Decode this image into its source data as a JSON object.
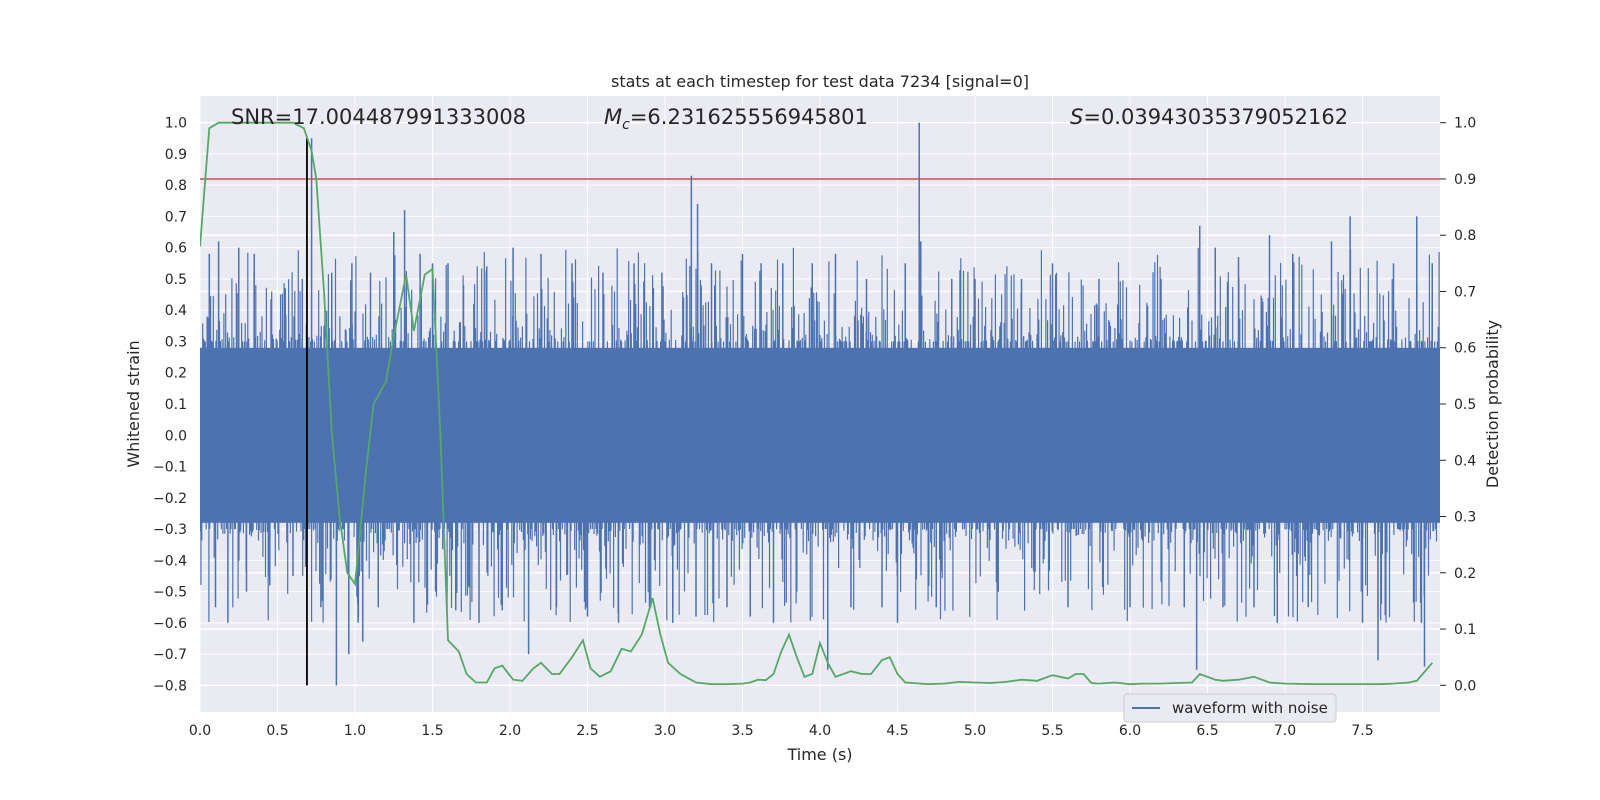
{
  "chart_data": {
    "type": "line",
    "title": "stats at each timestep for test data 7234 [signal=0]",
    "xlabel": "Time (s)",
    "ylabel": "Whitened strain",
    "y2label": "Detection probability",
    "xlim": [
      0.0,
      8.0
    ],
    "ylim": [
      -0.885,
      1.085
    ],
    "y2lim": [
      -0.0475,
      1.0475
    ],
    "x_ticks": [
      "0.0",
      "0.5",
      "1.0",
      "1.5",
      "2.0",
      "2.5",
      "3.0",
      "3.5",
      "4.0",
      "4.5",
      "5.0",
      "5.5",
      "6.0",
      "6.5",
      "7.0",
      "7.5"
    ],
    "y_ticks": [
      "−0.8",
      "−0.7",
      "−0.6",
      "−0.5",
      "−0.4",
      "−0.3",
      "−0.2",
      "−0.1",
      "0.0",
      "0.1",
      "0.2",
      "0.3",
      "0.4",
      "0.5",
      "0.6",
      "0.7",
      "0.8",
      "0.9",
      "1.0"
    ],
    "y2_ticks": [
      "0.0",
      "0.1",
      "0.2",
      "0.3",
      "0.4",
      "0.5",
      "0.6",
      "0.7",
      "0.8",
      "0.9",
      "1.0"
    ],
    "annotations": {
      "snr": "SNR=17.004487991333008",
      "mc": "=6.231625556945801",
      "mc_symbol": "M",
      "mc_sub": "c",
      "s": "=0.03943035379052162",
      "s_symbol": "S"
    },
    "legend": {
      "label": "waveform with noise",
      "location": "lower-right"
    },
    "threshold_probability": 0.9,
    "marker_time": 0.69,
    "noise_band": 0.28,
    "noise_spikes": [
      [
        0.06,
        0.58
      ],
      [
        0.1,
        -0.55
      ],
      [
        0.12,
        0.62
      ],
      [
        0.18,
        -0.6
      ],
      [
        0.25,
        0.6
      ],
      [
        0.3,
        -0.5
      ],
      [
        0.35,
        0.58
      ],
      [
        0.45,
        -0.48
      ],
      [
        0.55,
        0.47
      ],
      [
        0.6,
        -0.45
      ],
      [
        0.66,
        0.5
      ],
      [
        0.72,
        0.95
      ],
      [
        0.78,
        -0.55
      ],
      [
        0.85,
        0.52
      ],
      [
        0.88,
        -0.8
      ],
      [
        0.96,
        -0.7
      ],
      [
        0.98,
        0.55
      ],
      [
        1.02,
        -0.6
      ],
      [
        1.05,
        -0.66
      ],
      [
        1.1,
        0.52
      ],
      [
        1.15,
        -0.55
      ],
      [
        1.25,
        0.65
      ],
      [
        1.32,
        0.72
      ],
      [
        1.38,
        -0.6
      ],
      [
        1.42,
        0.58
      ],
      [
        1.5,
        0.55
      ],
      [
        1.52,
        -0.5
      ],
      [
        1.6,
        0.55
      ],
      [
        1.65,
        -0.56
      ],
      [
        1.7,
        0.48
      ],
      [
        1.8,
        -0.6
      ],
      [
        1.85,
        0.54
      ],
      [
        1.95,
        -0.56
      ],
      [
        2.02,
        0.6
      ],
      [
        2.12,
        -0.7
      ],
      [
        2.2,
        0.58
      ],
      [
        2.3,
        -0.55
      ],
      [
        2.4,
        0.55
      ],
      [
        2.5,
        -0.58
      ],
      [
        2.6,
        0.52
      ],
      [
        2.7,
        -0.6
      ],
      [
        2.8,
        0.55
      ],
      [
        2.9,
        -0.55
      ],
      [
        2.98,
        0.52
      ],
      [
        3.05,
        -0.6
      ],
      [
        3.17,
        0.83
      ],
      [
        3.2,
        -0.58
      ],
      [
        3.21,
        0.74
      ],
      [
        3.3,
        0.55
      ],
      [
        3.4,
        -0.55
      ],
      [
        3.5,
        0.58
      ],
      [
        3.55,
        -0.58
      ],
      [
        3.62,
        0.55
      ],
      [
        3.7,
        -0.6
      ],
      [
        3.76,
        0.55
      ],
      [
        3.85,
        -0.5
      ],
      [
        3.95,
        0.55
      ],
      [
        4.05,
        -0.75
      ],
      [
        4.1,
        0.58
      ],
      [
        4.2,
        -0.55
      ],
      [
        4.3,
        0.5
      ],
      [
        4.4,
        -0.55
      ],
      [
        4.5,
        -0.6
      ],
      [
        4.55,
        0.55
      ],
      [
        4.64,
        1.0
      ],
      [
        4.65,
        0.62
      ],
      [
        4.75,
        -0.55
      ],
      [
        4.85,
        0.5
      ],
      [
        5.0,
        0.5
      ],
      [
        5.15,
        -0.5
      ],
      [
        5.3,
        0.5
      ],
      [
        5.5,
        0.55
      ],
      [
        5.6,
        -0.55
      ],
      [
        5.8,
        0.5
      ],
      [
        6.0,
        -0.55
      ],
      [
        6.2,
        0.5
      ],
      [
        6.35,
        -0.55
      ],
      [
        6.43,
        -0.75
      ],
      [
        6.45,
        0.67
      ],
      [
        6.55,
        0.6
      ],
      [
        6.6,
        -0.55
      ],
      [
        6.7,
        0.57
      ],
      [
        6.8,
        -0.55
      ],
      [
        6.9,
        0.64
      ],
      [
        6.95,
        -0.6
      ],
      [
        7.05,
        0.58
      ],
      [
        7.15,
        -0.55
      ],
      [
        7.3,
        0.62
      ],
      [
        7.42,
        0.7
      ],
      [
        7.5,
        -0.6
      ],
      [
        7.6,
        -0.72
      ],
      [
        7.7,
        0.55
      ],
      [
        7.85,
        0.7
      ],
      [
        7.88,
        -0.6
      ],
      [
        7.9,
        -0.74
      ],
      [
        7.95,
        0.55
      ]
    ],
    "series": [
      {
        "name": "detection probability",
        "axis": "right",
        "color": "#55a868",
        "x": [
          0.0,
          0.06,
          0.12,
          0.2,
          0.3,
          0.4,
          0.5,
          0.6,
          0.67,
          0.72,
          0.75,
          0.8,
          0.85,
          0.9,
          0.95,
          1.0,
          1.07,
          1.12,
          1.2,
          1.25,
          1.33,
          1.38,
          1.45,
          1.5,
          1.55,
          1.6,
          1.67,
          1.72,
          1.78,
          1.85,
          1.9,
          1.95,
          2.02,
          2.08,
          2.15,
          2.2,
          2.27,
          2.32,
          2.4,
          2.47,
          2.52,
          2.58,
          2.65,
          2.72,
          2.78,
          2.85,
          2.92,
          2.97,
          3.02,
          3.1,
          3.2,
          3.3,
          3.4,
          3.5,
          3.55,
          3.6,
          3.65,
          3.7,
          3.75,
          3.8,
          3.85,
          3.9,
          3.95,
          4.0,
          4.05,
          4.1,
          4.15,
          4.2,
          4.27,
          4.33,
          4.4,
          4.45,
          4.5,
          4.55,
          4.6,
          4.65,
          4.7,
          4.8,
          4.9,
          5.0,
          5.1,
          5.2,
          5.3,
          5.4,
          5.5,
          5.6,
          5.65,
          5.7,
          5.75,
          5.8,
          5.9,
          6.0,
          6.1,
          6.2,
          6.3,
          6.4,
          6.45,
          6.5,
          6.55,
          6.6,
          6.7,
          6.8,
          6.9,
          7.0,
          7.2,
          7.4,
          7.6,
          7.7,
          7.8,
          7.85,
          7.95
        ],
        "y": [
          0.78,
          0.99,
          1.0,
          1.0,
          1.0,
          1.0,
          1.0,
          1.0,
          0.99,
          0.95,
          0.9,
          0.7,
          0.45,
          0.3,
          0.2,
          0.18,
          0.38,
          0.5,
          0.54,
          0.62,
          0.73,
          0.63,
          0.73,
          0.74,
          0.45,
          0.08,
          0.06,
          0.02,
          0.005,
          0.005,
          0.03,
          0.035,
          0.01,
          0.008,
          0.03,
          0.04,
          0.02,
          0.02,
          0.05,
          0.08,
          0.03,
          0.015,
          0.025,
          0.065,
          0.06,
          0.09,
          0.155,
          0.09,
          0.04,
          0.02,
          0.005,
          0.002,
          0.002,
          0.003,
          0.005,
          0.01,
          0.009,
          0.02,
          0.06,
          0.09,
          0.05,
          0.015,
          0.02,
          0.075,
          0.04,
          0.015,
          0.02,
          0.025,
          0.02,
          0.02,
          0.045,
          0.05,
          0.02,
          0.005,
          0.004,
          0.003,
          0.002,
          0.003,
          0.006,
          0.005,
          0.004,
          0.006,
          0.01,
          0.008,
          0.018,
          0.012,
          0.02,
          0.02,
          0.004,
          0.003,
          0.005,
          0.002,
          0.003,
          0.003,
          0.004,
          0.005,
          0.02,
          0.015,
          0.01,
          0.008,
          0.01,
          0.015,
          0.005,
          0.003,
          0.002,
          0.002,
          0.002,
          0.003,
          0.005,
          0.008,
          0.04
        ]
      }
    ]
  }
}
